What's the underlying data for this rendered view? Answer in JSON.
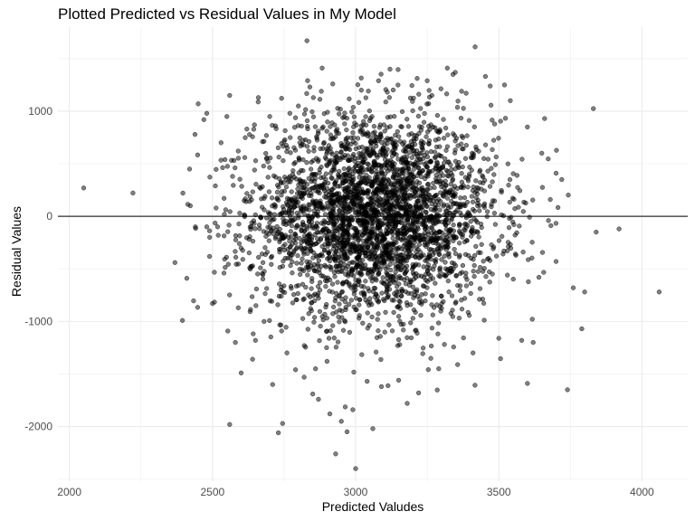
{
  "chart_data": {
    "type": "scatter",
    "title": "Plotted Predicted vs Residual Values in My Model",
    "xlabel": "Predicted Valudes",
    "ylabel": "Residual Values",
    "xlim": [
      1960,
      4160
    ],
    "ylim": [
      -2520,
      1800
    ],
    "x_ticks": [
      2000,
      2500,
      3000,
      3500,
      4000
    ],
    "x_tick_labels": [
      "2000",
      "2500",
      "3000",
      "3500",
      "4000"
    ],
    "y_ticks": [
      -2000,
      -1000,
      0,
      1000
    ],
    "y_tick_labels": [
      "-2000",
      "-1000",
      "0",
      "1000"
    ],
    "hline_y": 0,
    "grid": true,
    "point_color": "#000000",
    "point_opacity": 0.5,
    "series": [
      {
        "points": [
          [
            2050,
            270
          ],
          [
            2420,
            450
          ],
          [
            2410,
            -590
          ],
          [
            2440,
            -100
          ],
          [
            2450,
            1070
          ],
          [
            2470,
            920
          ],
          [
            2480,
            980
          ],
          [
            2490,
            -200
          ],
          [
            2500,
            -830
          ],
          [
            2510,
            290
          ],
          [
            2530,
            700
          ],
          [
            2540,
            -540
          ],
          [
            2550,
            950
          ],
          [
            2560,
            1150
          ],
          [
            2560,
            -1980
          ],
          [
            2570,
            380
          ],
          [
            2580,
            -1200
          ],
          [
            2590,
            -870
          ],
          [
            2600,
            -1490
          ],
          [
            2620,
            830
          ],
          [
            2630,
            -490
          ],
          [
            2640,
            -1360
          ],
          [
            2650,
            -1180
          ],
          [
            2660,
            1130
          ],
          [
            2680,
            -1000
          ],
          [
            2700,
            950
          ],
          [
            2710,
            -1600
          ],
          [
            2720,
            860
          ],
          [
            2730,
            -2060
          ],
          [
            2740,
            -760
          ],
          [
            2760,
            -1300
          ],
          [
            2770,
            980
          ],
          [
            2790,
            -1460
          ],
          [
            2800,
            1050
          ],
          [
            2820,
            -1530
          ],
          [
            2830,
            1670
          ],
          [
            2840,
            1230
          ],
          [
            2850,
            -1690
          ],
          [
            2860,
            -1450
          ],
          [
            2870,
            -1740
          ],
          [
            2880,
            1190
          ],
          [
            2900,
            -1380
          ],
          [
            2910,
            -1880
          ],
          [
            2920,
            1260
          ],
          [
            2930,
            -2260
          ],
          [
            2950,
            -1950
          ],
          [
            2970,
            -2050
          ],
          [
            2990,
            -1840
          ],
          [
            3000,
            -2400
          ],
          [
            3020,
            1200
          ],
          [
            3040,
            -1570
          ],
          [
            3060,
            -2020
          ],
          [
            3080,
            1290
          ],
          [
            3090,
            -1620
          ],
          [
            3120,
            1400
          ],
          [
            3150,
            -1560
          ],
          [
            3180,
            -1780
          ],
          [
            3220,
            -1680
          ],
          [
            3250,
            1290
          ],
          [
            3290,
            -1450
          ],
          [
            3320,
            1410
          ],
          [
            3340,
            1350
          ],
          [
            3370,
            1190
          ],
          [
            3410,
            -1300
          ],
          [
            3470,
            1240
          ],
          [
            3500,
            -1160
          ],
          [
            3520,
            1250
          ],
          [
            3540,
            1100
          ],
          [
            3580,
            -1180
          ],
          [
            3600,
            -1590
          ],
          [
            3620,
            -1200
          ],
          [
            3660,
            930
          ],
          [
            3700,
            -430
          ],
          [
            3720,
            350
          ],
          [
            3740,
            -1650
          ],
          [
            3760,
            -680
          ],
          [
            3790,
            -1070
          ],
          [
            3800,
            -720
          ],
          [
            3840,
            -150
          ],
          [
            3920,
            -120
          ],
          [
            4060,
            -720
          ],
          [
            3680,
            160
          ],
          [
            3650,
            600
          ],
          [
            3600,
            850
          ],
          [
            3560,
            -370
          ],
          [
            3530,
            -560
          ],
          [
            3700,
            410
          ],
          [
            3640,
            -580
          ],
          [
            2480,
            -100
          ],
          [
            2520,
            -180
          ]
        ],
        "cluster": {
          "x_center": 3070,
          "x_sd": 210,
          "y_center": 0,
          "y_sd": 470,
          "count": 3400
        }
      }
    ]
  }
}
